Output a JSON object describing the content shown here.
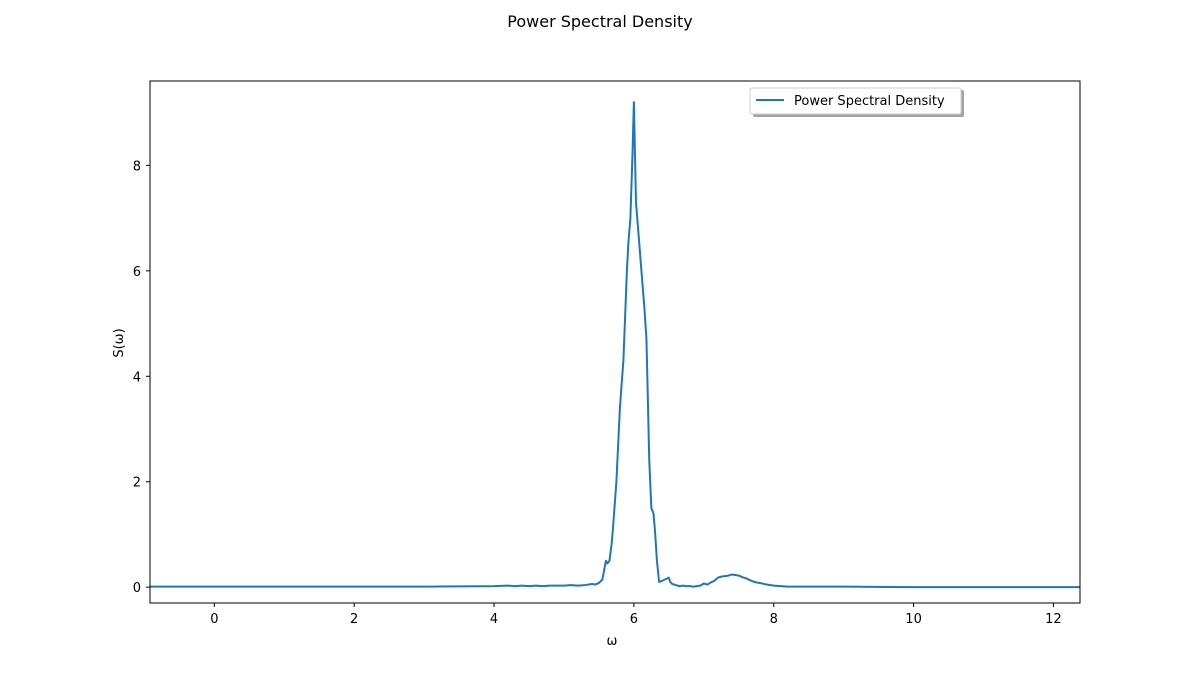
{
  "chart_data": {
    "type": "line",
    "title": "Power Spectral Density",
    "xlabel": "ω",
    "ylabel": "S(ω)",
    "xlim": [
      -0.92,
      12.38
    ],
    "ylim": [
      -0.3,
      9.6
    ],
    "xticks": [
      0,
      2,
      4,
      6,
      8,
      10,
      12
    ],
    "yticks": [
      0,
      2,
      4,
      6,
      8
    ],
    "grid": false,
    "legend_position": "top-right",
    "series": [
      {
        "name": "Power Spectral Density",
        "color": "#1f77b4",
        "x": [
          -0.92,
          0,
          1,
          2,
          3,
          4,
          4.2,
          4.3,
          4.4,
          4.5,
          4.6,
          4.7,
          4.8,
          4.9,
          5.0,
          5.1,
          5.2,
          5.3,
          5.4,
          5.45,
          5.5,
          5.55,
          5.6,
          5.62,
          5.65,
          5.68,
          5.7,
          5.75,
          5.8,
          5.85,
          5.9,
          5.92,
          5.95,
          5.98,
          6.0,
          6.03,
          6.06,
          6.09,
          6.12,
          6.15,
          6.18,
          6.22,
          6.25,
          6.28,
          6.3,
          6.33,
          6.36,
          6.4,
          6.45,
          6.5,
          6.52,
          6.55,
          6.6,
          6.65,
          6.7,
          6.75,
          6.8,
          6.85,
          6.9,
          6.95,
          7.0,
          7.05,
          7.1,
          7.15,
          7.2,
          7.25,
          7.3,
          7.35,
          7.4,
          7.45,
          7.5,
          7.55,
          7.6,
          7.65,
          7.7,
          7.75,
          7.8,
          7.9,
          8.0,
          8.1,
          8.2,
          8.5,
          9,
          10,
          11,
          12,
          12.38
        ],
        "y": [
          0.01,
          0.01,
          0.01,
          0.01,
          0.01,
          0.02,
          0.03,
          0.02,
          0.03,
          0.02,
          0.03,
          0.02,
          0.03,
          0.03,
          0.03,
          0.04,
          0.03,
          0.04,
          0.06,
          0.05,
          0.08,
          0.15,
          0.5,
          0.45,
          0.5,
          0.8,
          1.1,
          2.0,
          3.4,
          4.3,
          6.0,
          6.5,
          7.0,
          8.2,
          9.2,
          7.3,
          6.8,
          6.3,
          5.8,
          5.3,
          4.7,
          2.4,
          1.5,
          1.4,
          1.1,
          0.5,
          0.1,
          0.12,
          0.15,
          0.18,
          0.1,
          0.06,
          0.04,
          0.02,
          0.03,
          0.02,
          0.02,
          0.01,
          0.02,
          0.03,
          0.07,
          0.05,
          0.09,
          0.12,
          0.18,
          0.2,
          0.21,
          0.22,
          0.24,
          0.23,
          0.22,
          0.19,
          0.17,
          0.14,
          0.11,
          0.09,
          0.08,
          0.05,
          0.03,
          0.02,
          0.01,
          0.01,
          0.01,
          0.0,
          0.0,
          0.0,
          0.0
        ]
      }
    ]
  }
}
